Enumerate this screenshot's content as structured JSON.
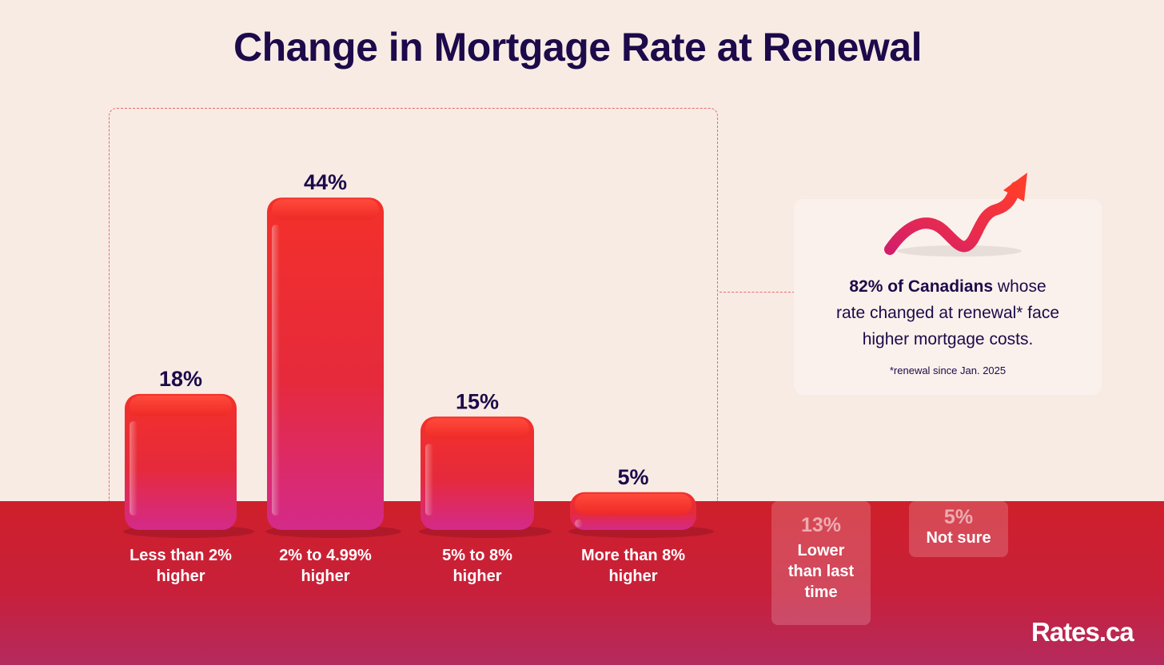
{
  "chart_data": {
    "type": "bar",
    "title": "Change in Mortgage Rate at Renewal",
    "categories": [
      "Less than 2%\nhigher",
      "2% to 4.99%\nhigher",
      "5% to 8%\nhigher",
      "More than 8%\nhigher"
    ],
    "values": [
      18,
      44,
      15,
      5
    ],
    "value_labels": [
      "18%",
      "44%",
      "15%",
      "5%"
    ],
    "unit": "%",
    "ylim": [
      0,
      50
    ],
    "grid": false,
    "legend": "none",
    "other_responses": [
      {
        "value": 13,
        "value_label": "13%",
        "label": "Lower\nthan last\ntime"
      },
      {
        "value": 5,
        "value_label": "5%",
        "label": "Not sure"
      }
    ]
  },
  "callout": {
    "highlight": "82% of Canadians",
    "text_rest_1": " whose",
    "text_line_2": "rate changed at renewal* face",
    "text_line_3": "higher mortgage costs.",
    "footnote": "*renewal since Jan. 2025",
    "icon": "rising-arrow-icon"
  },
  "brand": {
    "logo_text": "Rates.ca"
  },
  "colors": {
    "title": "#1c0a4a",
    "bar_top": "#f0302a",
    "bar_bottom": "#d62a86",
    "floor": "#cf1f2b",
    "background": "#f8ebe4"
  }
}
